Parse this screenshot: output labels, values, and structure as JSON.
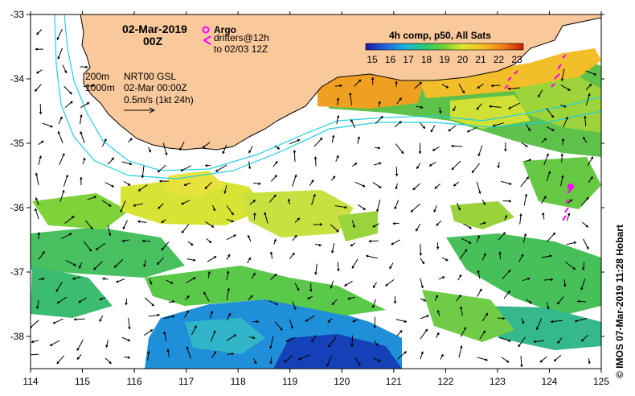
{
  "title": {
    "date": "02-Mar-2019",
    "time": "00Z"
  },
  "legend": {
    "argo_label": "Argo",
    "drifters_line1": "drifters@12h",
    "drifters_line2": "to 02/03 12Z",
    "colorbar_title": "4h comp, p50, All Sats",
    "colorbar_ticks": [
      "15",
      "16",
      "17",
      "18",
      "19",
      "20",
      "21",
      "22",
      "23"
    ]
  },
  "info": {
    "isobath1": "200m",
    "isobath2": "1000m",
    "product": "NRT00 GSL",
    "timestamp": "02-Mar 00:00Z",
    "scale": "0.5m/s (1kt 24h)"
  },
  "axes": {
    "lon_ticks": [
      "114",
      "115",
      "116",
      "117",
      "118",
      "119",
      "120",
      "121",
      "122",
      "123",
      "124",
      "125"
    ],
    "lat_ticks": [
      "-33",
      "-34",
      "-35",
      "-36",
      "-37",
      "-38"
    ],
    "lon_range": [
      114,
      125
    ],
    "lat_range": [
      -38.5,
      -33
    ]
  },
  "credit": "© IMOS 07-Mar-2019 11:28 Hobart",
  "colors": {
    "land": "#f9c89b",
    "isobath": "#22d0e0",
    "argo": "#ff00ff"
  }
}
